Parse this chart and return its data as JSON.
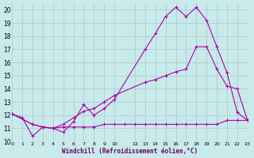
{
  "background_color": "#c8eaea",
  "grid_color": "#a8c8c8",
  "line_color": "#aa00aa",
  "xlabel": "Windchill (Refroidissement éolien,°C)",
  "ylim": [
    10,
    20.5
  ],
  "xlim": [
    0,
    23
  ],
  "yticks": [
    10,
    11,
    12,
    13,
    14,
    15,
    16,
    17,
    18,
    19,
    20
  ],
  "xtick_vals": [
    0,
    1,
    2,
    3,
    4,
    5,
    6,
    7,
    8,
    9,
    10,
    12,
    13,
    14,
    15,
    16,
    17,
    18,
    19,
    20,
    21,
    22,
    23
  ],
  "xtick_labels": [
    "0",
    "1",
    "2",
    "3",
    "4",
    "5",
    "6",
    "7",
    "8",
    "9",
    "10",
    "12",
    "13",
    "14",
    "15",
    "16",
    "17",
    "18",
    "19",
    "20",
    "21",
    "22",
    "23"
  ],
  "line1_x": [
    0,
    1,
    2,
    3,
    4,
    5,
    6,
    7,
    8,
    9,
    10,
    13,
    14,
    15,
    16,
    17,
    18,
    19,
    20,
    21,
    22,
    23
  ],
  "line1_y": [
    12.1,
    11.8,
    10.4,
    11.1,
    11.0,
    10.7,
    11.5,
    12.8,
    12.0,
    12.5,
    13.2,
    17.0,
    18.2,
    19.5,
    20.2,
    19.5,
    20.2,
    19.2,
    17.2,
    15.2,
    12.2,
    11.6
  ],
  "line2_x": [
    0,
    2,
    3,
    4,
    5,
    6,
    7,
    8,
    9,
    10,
    11,
    12,
    13,
    14,
    15,
    16,
    17,
    18,
    19,
    20,
    21,
    22,
    23
  ],
  "line2_y": [
    12.1,
    11.3,
    11.1,
    11.0,
    11.1,
    11.1,
    11.1,
    11.1,
    11.3,
    11.3,
    11.3,
    11.3,
    11.3,
    11.3,
    11.3,
    11.3,
    11.3,
    11.3,
    11.3,
    11.3,
    11.6,
    11.6,
    11.6
  ],
  "line3_x": [
    0,
    2,
    3,
    4,
    5,
    6,
    7,
    8,
    9,
    10,
    13,
    14,
    15,
    16,
    17,
    18,
    19,
    20,
    21,
    22,
    23
  ],
  "line3_y": [
    12.1,
    11.3,
    11.1,
    11.0,
    11.3,
    11.8,
    12.3,
    12.5,
    13.0,
    13.5,
    14.5,
    14.7,
    15.0,
    15.3,
    15.5,
    17.2,
    17.2,
    15.5,
    14.2,
    14.0,
    11.6
  ]
}
